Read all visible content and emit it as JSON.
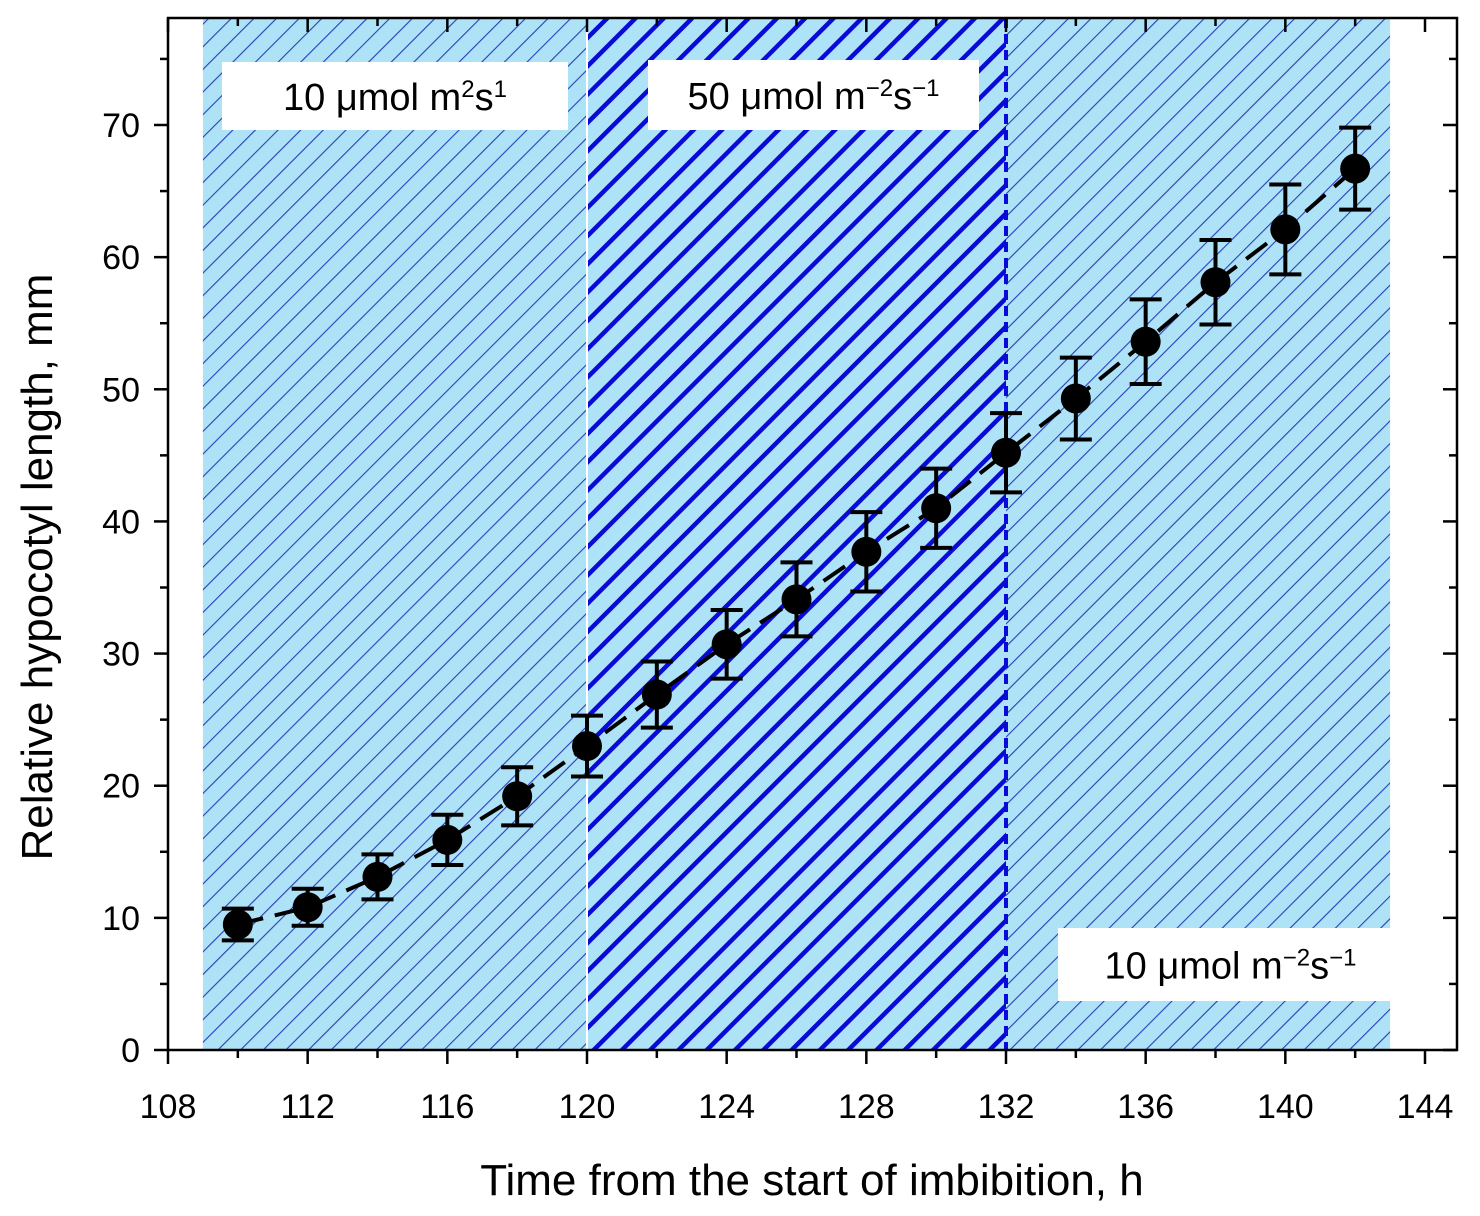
{
  "chart_data": {
    "type": "scatter",
    "xlabel": "Time from the start of imbibition, h",
    "ylabel": "Relative hypocotyl length, mm",
    "xlim": [
      108,
      144
    ],
    "ylim": [
      0,
      78
    ],
    "xticks": [
      108,
      112,
      116,
      120,
      124,
      128,
      132,
      136,
      140,
      144
    ],
    "yticks": [
      0,
      10,
      20,
      30,
      40,
      50,
      60,
      70
    ],
    "series": [
      {
        "name": "Relative hypocotyl length",
        "x": [
          110,
          112,
          114,
          116,
          118,
          120,
          122,
          124,
          126,
          128,
          130,
          132,
          134,
          136,
          138,
          140,
          142
        ],
        "y": [
          9.5,
          10.8,
          13.1,
          15.9,
          19.2,
          23.0,
          26.9,
          30.7,
          34.1,
          37.7,
          41.0,
          45.2,
          49.3,
          53.6,
          58.1,
          62.1,
          66.7
        ],
        "err": [
          1.2,
          1.4,
          1.7,
          1.9,
          2.2,
          2.3,
          2.5,
          2.6,
          2.8,
          3.0,
          3.0,
          3.0,
          3.1,
          3.2,
          3.2,
          3.4,
          3.1
        ]
      }
    ],
    "regions": [
      {
        "x_start": 109,
        "x_end": 120,
        "intensity": "low",
        "label_base": "10 μmol m",
        "label_exp1": "2",
        "label_mid": "s",
        "label_exp2": "1"
      },
      {
        "x_start": 120,
        "x_end": 132,
        "intensity": "high",
        "label_base": "50 μmol m",
        "label_exp1": "−2",
        "label_mid": "s",
        "label_exp2": "−1"
      },
      {
        "x_start": 132,
        "x_end": 143,
        "intensity": "low",
        "label_base": "10 μmol m",
        "label_exp1": "−2",
        "label_mid": "s",
        "label_exp2": "−1"
      }
    ],
    "colors": {
      "region_low_fill": "#aee2f7",
      "region_low_hatch": "#2a3fb8",
      "region_high_fill": "#aee2f7",
      "region_high_hatch": "#0a0ad8",
      "marker": "#000000"
    }
  }
}
